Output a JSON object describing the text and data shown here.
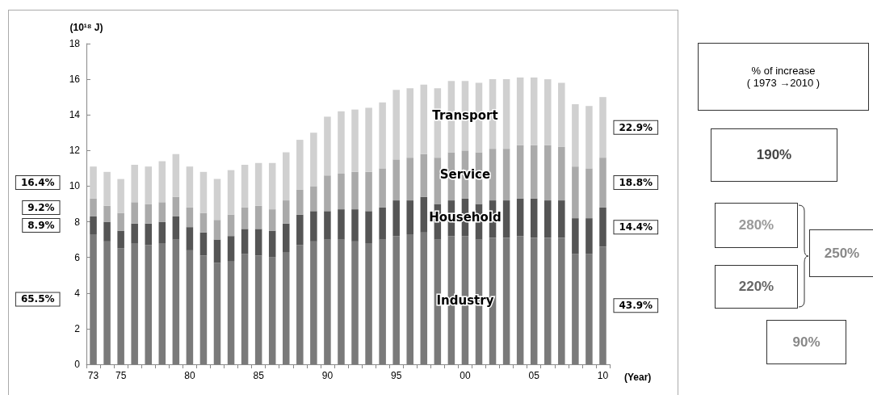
{
  "chart_data": {
    "type": "bar",
    "stacked": true,
    "ylabel": "(10¹⁸ J)",
    "xlabel": "(Year)",
    "categories": [
      "73",
      null,
      "75",
      null,
      null,
      null,
      null,
      "80",
      null,
      null,
      null,
      null,
      "85",
      null,
      null,
      null,
      null,
      "90",
      null,
      null,
      null,
      null,
      "95",
      null,
      null,
      null,
      null,
      "00",
      null,
      null,
      null,
      null,
      "05",
      null,
      null,
      null,
      null,
      "10"
    ],
    "ylim": [
      0,
      18
    ],
    "yticks": [
      0,
      2,
      4,
      6,
      8,
      10,
      12,
      14,
      16,
      18
    ],
    "grid": false,
    "legend": false,
    "series": [
      {
        "name": "Industry",
        "color": "#7a7a7a",
        "values": [
          7.3,
          6.9,
          6.5,
          6.8,
          6.7,
          6.8,
          7.0,
          6.4,
          6.1,
          5.7,
          5.8,
          6.2,
          6.1,
          6.0,
          6.3,
          6.7,
          6.9,
          7.0,
          7.0,
          6.9,
          6.8,
          7.0,
          7.2,
          7.3,
          7.4,
          7.0,
          7.2,
          7.2,
          7.0,
          7.1,
          7.1,
          7.2,
          7.1,
          7.1,
          7.1,
          6.2,
          6.2,
          6.6
        ]
      },
      {
        "name": "Household",
        "color": "#555555",
        "values": [
          1.0,
          1.1,
          1.0,
          1.1,
          1.2,
          1.2,
          1.3,
          1.3,
          1.3,
          1.3,
          1.4,
          1.4,
          1.5,
          1.5,
          1.6,
          1.7,
          1.7,
          1.6,
          1.7,
          1.8,
          1.8,
          1.8,
          2.0,
          1.9,
          2.0,
          2.0,
          2.0,
          2.1,
          2.0,
          2.1,
          2.1,
          2.1,
          2.2,
          2.1,
          2.1,
          2.0,
          2.0,
          2.2
        ]
      },
      {
        "name": "Service",
        "color": "#aaaaaa",
        "values": [
          1.0,
          0.9,
          1.0,
          1.2,
          1.1,
          1.1,
          1.1,
          1.1,
          1.1,
          1.1,
          1.2,
          1.2,
          1.3,
          1.2,
          1.3,
          1.4,
          1.4,
          2.0,
          2.0,
          2.1,
          2.2,
          2.2,
          2.3,
          2.4,
          2.4,
          2.6,
          2.7,
          2.7,
          2.9,
          2.9,
          2.9,
          3.0,
          3.0,
          3.1,
          3.0,
          2.9,
          2.8,
          2.8
        ]
      },
      {
        "name": "Transport",
        "color": "#d0d0d0",
        "values": [
          1.8,
          1.9,
          1.9,
          2.1,
          2.1,
          2.3,
          2.4,
          2.3,
          2.3,
          2.3,
          2.5,
          2.4,
          2.4,
          2.6,
          2.7,
          2.8,
          3.0,
          3.3,
          3.5,
          3.5,
          3.6,
          3.7,
          3.9,
          3.9,
          3.9,
          3.9,
          4.0,
          3.9,
          3.9,
          3.9,
          3.9,
          3.8,
          3.8,
          3.7,
          3.6,
          3.5,
          3.5,
          3.4
        ]
      }
    ],
    "annotations": [
      "65.5%",
      "8.9%",
      "9.2%",
      "16.4%",
      "43.9%",
      "14.4%",
      "18.8%",
      "22.9%",
      "% of increase\n( 1973 →2010 )",
      "190%",
      "280%",
      "250%",
      "220%",
      "90%"
    ]
  }
}
